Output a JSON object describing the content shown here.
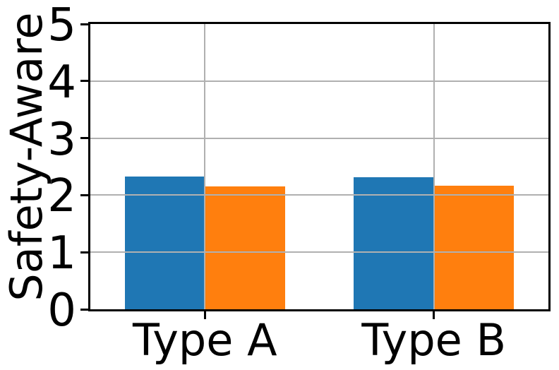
{
  "figure": {
    "background": "#ffffff",
    "spine_color": "#000000",
    "grid_color": "#b0b0b0",
    "text_color": "#000000"
  },
  "chart_data": {
    "type": "bar",
    "title": "",
    "xlabel": "",
    "ylabel": "Safety-Aware",
    "categories": [
      "Type A",
      "Type B"
    ],
    "series": [
      {
        "name": "blue",
        "color": "#1f77b4",
        "values": [
          2.33,
          2.31
        ]
      },
      {
        "name": "orange",
        "color": "#ff7f0e",
        "values": [
          2.15,
          2.17
        ]
      }
    ],
    "ylim": [
      0,
      5
    ],
    "yticks": [
      0,
      1,
      2,
      3,
      4,
      5
    ],
    "grid": true,
    "grid_on_top": true,
    "bar_width_units": 0.35,
    "legend": false
  }
}
